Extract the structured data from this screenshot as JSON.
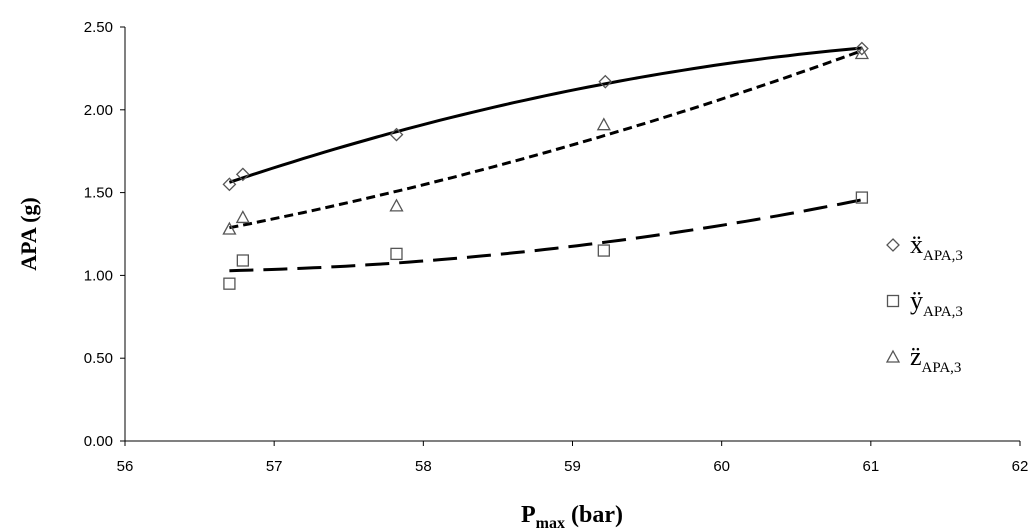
{
  "chart_data": {
    "type": "scatter",
    "xlabel": {
      "main": "P",
      "sub": "max",
      "rest": " (bar)"
    },
    "ylabel": "APA (g)",
    "xlim": [
      56,
      62
    ],
    "xticks": [
      56,
      57,
      58,
      59,
      60,
      61,
      62
    ],
    "ylim": [
      0,
      2.5
    ],
    "yticks": [
      {
        "value": 0,
        "label": "0.00"
      },
      {
        "value": 0.5,
        "label": "0.50"
      },
      {
        "value": 1,
        "label": "1.00"
      },
      {
        "value": 1.5,
        "label": "1.50"
      },
      {
        "value": 2,
        "label": "2.00"
      },
      {
        "value": 2.5,
        "label": "2.50"
      }
    ],
    "grid": false,
    "legend": "right",
    "series": [
      {
        "name": "ẍ",
        "name_sub": "APA,3",
        "color": "#555555",
        "marker": "diamond",
        "trendline": "solid",
        "x": [
          56.7,
          56.79,
          57.82,
          59.22,
          60.94
        ],
        "values": [
          1.55,
          1.61,
          1.85,
          2.17,
          2.37
        ]
      },
      {
        "name": "ÿ",
        "name_sub": "APA,3",
        "color": "#555555",
        "marker": "square",
        "trendline": "long-dash",
        "x": [
          56.7,
          56.79,
          57.82,
          59.21,
          60.94
        ],
        "values": [
          0.95,
          1.09,
          1.13,
          1.15,
          1.47
        ]
      },
      {
        "name": "z̈",
        "name_sub": "APA,3",
        "color": "#555555",
        "marker": "triangle",
        "trendline": "short-dash",
        "x": [
          56.7,
          56.79,
          57.82,
          59.21,
          60.94
        ],
        "values": [
          1.28,
          1.35,
          1.42,
          1.91,
          2.34
        ]
      }
    ]
  }
}
